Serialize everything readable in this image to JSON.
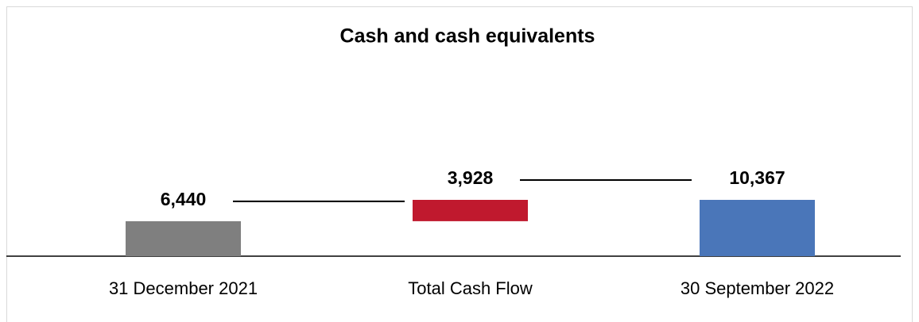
{
  "chart_data": {
    "type": "waterfall",
    "title": "Cash and cash equivalents",
    "categories": [
      "31 December 2021",
      "Total Cash Flow",
      "30 September 2022"
    ],
    "values": [
      6440,
      3928,
      10367
    ],
    "value_labels": [
      "6,440",
      "3,928",
      "10,367"
    ],
    "measure": [
      "absolute",
      "relative",
      "total"
    ],
    "colors": [
      "#7f7f7f",
      "#c0192e",
      "#4a76b9"
    ]
  }
}
